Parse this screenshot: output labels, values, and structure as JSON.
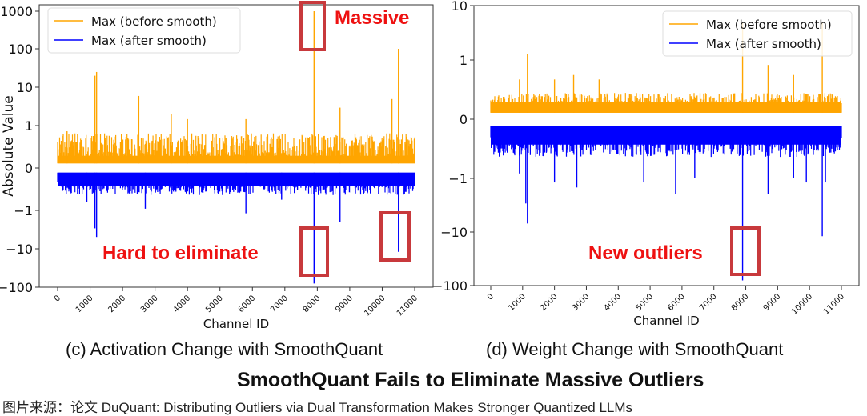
{
  "chart_data": [
    {
      "type": "line",
      "id": "activation",
      "title": "",
      "caption": "(c) Activation Change with SmoothQuant",
      "xlabel": "Channel ID",
      "ylabel": "Absolute Value",
      "xlim": [
        0,
        11000
      ],
      "xticks": [
        "0",
        "1000",
        "2000",
        "3000",
        "4000",
        "5000",
        "6000",
        "7000",
        "8000",
        "9000",
        "10000",
        "11000"
      ],
      "yscale": "symlog",
      "yticks": [
        "1000",
        "100",
        "10",
        "1",
        "0",
        "-1",
        "-10",
        "-100"
      ],
      "ylim": [
        -100,
        1000
      ],
      "legend": {
        "placement": "top-left",
        "entries": [
          "Max (before smooth)",
          "Max (after smooth)"
        ]
      },
      "series": [
        {
          "name": "Max (before smooth)",
          "color": "#FFA500",
          "baseline": 0.05,
          "typical_max": 0.5,
          "peaks": [
            [
              1150,
              20
            ],
            [
              1200,
              25
            ],
            [
              2500,
              6
            ],
            [
              3500,
              2
            ],
            [
              5800,
              1.5
            ],
            [
              7900,
              1000
            ],
            [
              8700,
              3
            ],
            [
              10300,
              5
            ],
            [
              10500,
              100
            ],
            [
              290,
              0.7
            ],
            [
              4000,
              1.5
            ]
          ]
        },
        {
          "name": "Max (after smooth)",
          "color": "#0000FF",
          "baseline": -0.1,
          "typical_min": -0.3,
          "peaks": [
            [
              1150,
              -3
            ],
            [
              1200,
              -5
            ],
            [
              900,
              -0.6
            ],
            [
              2700,
              -0.9
            ],
            [
              5800,
              -1.2
            ],
            [
              7900,
              -80
            ],
            [
              8700,
              -2
            ],
            [
              10500,
              -12
            ],
            [
              6900,
              -0.5
            ]
          ]
        }
      ],
      "annotations": [
        {
          "text": "Massive",
          "color": "#EE1111",
          "target_channel": 7900,
          "position": "top"
        },
        {
          "text": "Hard to eliminate",
          "color": "#EE1111",
          "position": "bottom-left"
        }
      ],
      "highlight_boxes": [
        {
          "channel": 7900,
          "value_range": [
            100,
            1000
          ]
        },
        {
          "channel": 7900,
          "value_range": [
            -100,
            -10
          ]
        },
        {
          "channel": 10500,
          "value_range": [
            -30,
            -3
          ]
        }
      ]
    },
    {
      "type": "line",
      "id": "weight",
      "title": "",
      "caption": "(d) Weight Change with SmoothQuant",
      "xlabel": "Channel ID",
      "ylabel": "",
      "xlim": [
        0,
        11000
      ],
      "xticks": [
        "0",
        "1000",
        "2000",
        "3000",
        "4000",
        "5000",
        "6000",
        "7000",
        "8000",
        "9000",
        "10000",
        "11000"
      ],
      "yscale": "symlog",
      "yticks": [
        "10",
        "1",
        "0",
        "-1",
        "-10",
        "-100"
      ],
      "ylim": [
        -100,
        10
      ],
      "legend": {
        "placement": "top-right",
        "entries": [
          "Max (before smooth)",
          "Max (after smooth)"
        ]
      },
      "series": [
        {
          "name": "Max (before smooth)",
          "color": "#FFA500",
          "baseline": 0.05,
          "typical_max": 0.15,
          "peaks": [
            [
              1150,
              1.3
            ],
            [
              900,
              0.4
            ],
            [
              2000,
              0.4
            ],
            [
              2600,
              0.5
            ],
            [
              3400,
              0.4
            ],
            [
              7900,
              5
            ],
            [
              10400,
              5
            ],
            [
              8700,
              0.8
            ],
            [
              9500,
              0.5
            ]
          ]
        },
        {
          "name": "Max (after smooth)",
          "color": "#0000FF",
          "baseline": -0.1,
          "typical_min": -0.3,
          "peaks": [
            [
              1100,
              -3
            ],
            [
              1150,
              -7
            ],
            [
              900,
              -0.8
            ],
            [
              2000,
              -1.2
            ],
            [
              2700,
              -1.5
            ],
            [
              5800,
              -2
            ],
            [
              7900,
              -80
            ],
            [
              8700,
              -2
            ],
            [
              10400,
              -12
            ],
            [
              10500,
              -1.2
            ],
            [
              9500,
              -1
            ],
            [
              9900,
              -1.2
            ],
            [
              4800,
              -1.2
            ],
            [
              6400,
              -1
            ]
          ]
        }
      ],
      "annotations": [
        {
          "text": "New outliers",
          "color": "#EE1111",
          "position": "bottom-center"
        }
      ],
      "highlight_boxes": [
        {
          "channel": 7900,
          "value_range": [
            -100,
            -10
          ]
        }
      ]
    }
  ],
  "figure": {
    "title": "SmoothQuant Fails to Eliminate Massive Outliers",
    "source": "图片来源：论文 DuQuant: Distributing Outliers via Dual Transformation Makes Stronger Quantized LLMs"
  }
}
